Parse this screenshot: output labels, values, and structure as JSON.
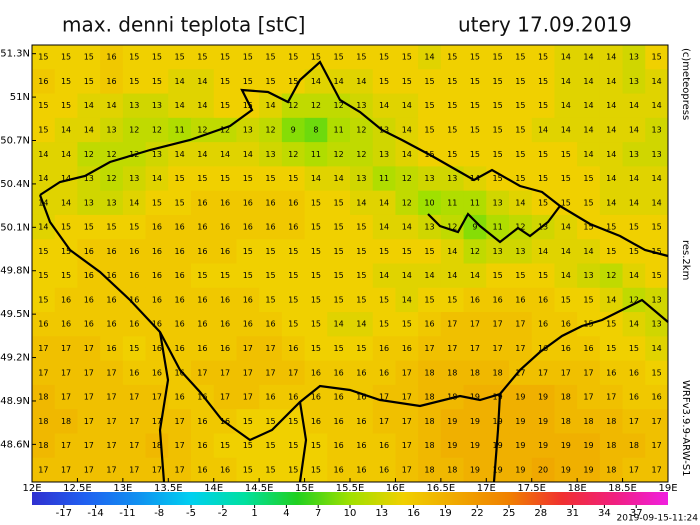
{
  "header": {
    "title": "max. denni teplota [stC]",
    "date": "utery 17.09.2019"
  },
  "side": {
    "copyright": "(c)meteopress",
    "resolution": "res.2km",
    "model": "WRFv3.9.9-ARW-S1"
  },
  "footer": {
    "timestamp": "2019-09-15-11:24"
  },
  "map": {
    "xlim": [
      12,
      19
    ],
    "ylim": [
      48.34,
      51.36
    ],
    "xticks": [
      {
        "value": 12,
        "label": "12E"
      },
      {
        "value": 12.5,
        "label": "12.5E"
      },
      {
        "value": 13,
        "label": "13E"
      },
      {
        "value": 13.5,
        "label": "13.5E"
      },
      {
        "value": 14,
        "label": "14E"
      },
      {
        "value": 14.5,
        "label": "14.5E"
      },
      {
        "value": 15,
        "label": "15E"
      },
      {
        "value": 15.5,
        "label": "15.5E"
      },
      {
        "value": 16,
        "label": "16E"
      },
      {
        "value": 16.5,
        "label": "16.5E"
      },
      {
        "value": 17,
        "label": "17E"
      },
      {
        "value": 17.5,
        "label": "17.5E"
      },
      {
        "value": 18,
        "label": "18E"
      },
      {
        "value": 18.5,
        "label": "18.5E"
      },
      {
        "value": 19,
        "label": "19E"
      }
    ],
    "yticks": [
      {
        "value": 51.3,
        "label": "51.3N"
      },
      {
        "value": 51,
        "label": "51N"
      },
      {
        "value": 50.7,
        "label": "50.7N"
      },
      {
        "value": 50.4,
        "label": "50.4N"
      },
      {
        "value": 50.1,
        "label": "50.1N"
      },
      {
        "value": 49.8,
        "label": "49.8N"
      },
      {
        "value": 49.5,
        "label": "49.5N"
      },
      {
        "value": 49.2,
        "label": "49.2N"
      },
      {
        "value": 48.9,
        "label": "48.9N"
      },
      {
        "value": 48.6,
        "label": "48.6N"
      }
    ],
    "grid": [
      [
        15,
        15,
        15,
        16,
        15,
        15,
        15,
        15,
        15,
        15,
        15,
        15,
        15,
        15,
        15,
        15,
        15,
        14,
        15,
        15,
        15,
        15,
        15,
        14,
        14,
        14,
        13,
        15
      ],
      [
        16,
        15,
        15,
        16,
        15,
        15,
        14,
        14,
        15,
        15,
        15,
        15,
        14,
        14,
        14,
        15,
        15,
        15,
        15,
        15,
        15,
        15,
        15,
        14,
        14,
        14,
        13,
        14
      ],
      [
        15,
        15,
        14,
        14,
        13,
        13,
        14,
        14,
        15,
        15,
        14,
        12,
        12,
        12,
        13,
        14,
        14,
        15,
        15,
        15,
        15,
        15,
        15,
        14,
        14,
        14,
        14,
        14
      ],
      [
        15,
        14,
        14,
        13,
        12,
        12,
        11,
        12,
        12,
        13,
        12,
        9,
        8,
        11,
        12,
        13,
        14,
        15,
        15,
        15,
        15,
        15,
        14,
        14,
        14,
        14,
        14,
        13
      ],
      [
        14,
        14,
        12,
        12,
        12,
        13,
        14,
        14,
        14,
        14,
        13,
        12,
        11,
        12,
        12,
        13,
        14,
        15,
        15,
        15,
        15,
        15,
        15,
        15,
        14,
        14,
        13,
        13
      ],
      [
        14,
        14,
        13,
        12,
        13,
        14,
        15,
        15,
        15,
        15,
        15,
        15,
        14,
        14,
        13,
        11,
        12,
        13,
        13,
        14,
        15,
        15,
        15,
        15,
        15,
        14,
        14,
        14
      ],
      [
        14,
        14,
        13,
        13,
        14,
        15,
        15,
        16,
        16,
        16,
        16,
        16,
        15,
        15,
        14,
        14,
        12,
        10,
        11,
        11,
        13,
        14,
        15,
        15,
        15,
        14,
        14,
        14
      ],
      [
        14,
        15,
        15,
        15,
        15,
        16,
        16,
        16,
        16,
        16,
        16,
        16,
        15,
        15,
        15,
        14,
        14,
        13,
        12,
        9,
        11,
        12,
        13,
        14,
        15,
        15,
        15,
        15
      ],
      [
        15,
        15,
        16,
        16,
        16,
        16,
        16,
        16,
        16,
        15,
        15,
        15,
        15,
        15,
        15,
        15,
        15,
        15,
        14,
        12,
        13,
        13,
        14,
        14,
        14,
        15,
        15,
        15
      ],
      [
        15,
        15,
        16,
        16,
        16,
        16,
        16,
        15,
        15,
        15,
        15,
        15,
        15,
        15,
        15,
        14,
        14,
        14,
        14,
        14,
        15,
        15,
        15,
        14,
        13,
        12,
        14,
        15
      ],
      [
        15,
        16,
        16,
        16,
        16,
        16,
        16,
        16,
        16,
        16,
        15,
        15,
        15,
        15,
        15,
        15,
        14,
        15,
        15,
        16,
        16,
        16,
        16,
        15,
        15,
        14,
        12,
        13
      ],
      [
        16,
        16,
        16,
        16,
        16,
        16,
        16,
        16,
        16,
        16,
        16,
        15,
        15,
        14,
        14,
        15,
        15,
        16,
        17,
        17,
        17,
        17,
        16,
        16,
        15,
        15,
        14,
        13
      ],
      [
        17,
        17,
        17,
        16,
        15,
        16,
        16,
        16,
        16,
        17,
        17,
        16,
        15,
        15,
        15,
        16,
        16,
        17,
        17,
        17,
        17,
        17,
        16,
        16,
        16,
        15,
        15,
        14
      ],
      [
        17,
        17,
        17,
        17,
        16,
        16,
        16,
        17,
        17,
        17,
        17,
        17,
        16,
        16,
        16,
        16,
        17,
        18,
        18,
        18,
        18,
        17,
        17,
        17,
        17,
        16,
        16,
        15
      ],
      [
        18,
        17,
        17,
        17,
        17,
        17,
        16,
        16,
        17,
        17,
        16,
        16,
        16,
        16,
        16,
        17,
        17,
        18,
        18,
        19,
        19,
        19,
        19,
        18,
        17,
        17,
        16,
        16
      ],
      [
        18,
        18,
        17,
        17,
        17,
        17,
        17,
        16,
        16,
        15,
        15,
        15,
        16,
        16,
        16,
        17,
        17,
        18,
        19,
        19,
        19,
        19,
        19,
        18,
        18,
        18,
        17,
        17
      ],
      [
        18,
        17,
        17,
        17,
        17,
        18,
        17,
        16,
        15,
        15,
        15,
        15,
        15,
        16,
        16,
        16,
        17,
        18,
        19,
        19,
        19,
        19,
        19,
        19,
        19,
        18,
        18,
        17
      ],
      [
        17,
        17,
        17,
        17,
        17,
        17,
        17,
        16,
        16,
        15,
        15,
        15,
        15,
        16,
        16,
        16,
        17,
        18,
        18,
        19,
        19,
        19,
        20,
        19,
        19,
        18,
        17,
        17
      ]
    ]
  },
  "colorbar": {
    "range": [
      -20,
      40
    ],
    "stops": [
      "#3030d0",
      "#2060f0",
      "#1090f0",
      "#00d0f0",
      "#00e0a0",
      "#20d020",
      "#a0e000",
      "#f0d000",
      "#f0a800",
      "#f08000",
      "#f03030",
      "#f02080",
      "#f020e0"
    ],
    "ticks": [
      -17,
      -14,
      -11,
      -8,
      -5,
      -2,
      1,
      4,
      7,
      10,
      13,
      16,
      19,
      22,
      25,
      28,
      31,
      34,
      37
    ]
  }
}
